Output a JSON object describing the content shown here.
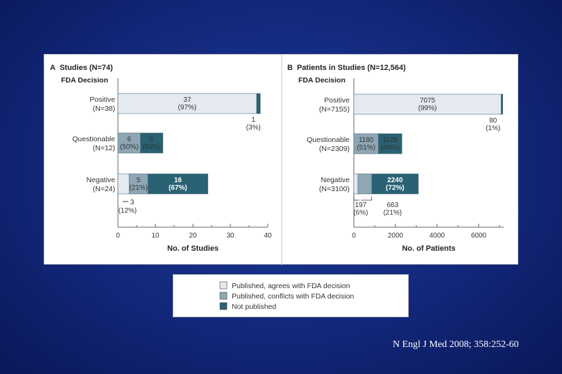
{
  "colors": {
    "agrees": "#e4eaf0",
    "conflicts": "#8fa6b5",
    "not_published": "#2a6274",
    "axis": "#666666",
    "label": "#333333"
  },
  "legend": {
    "items": [
      {
        "label": "Published, agrees with FDA decision",
        "color": "#e4eaf0"
      },
      {
        "label": "Published, conflicts with FDA decision",
        "color": "#8fa6b5"
      },
      {
        "label": "Not published",
        "color": "#2a6274"
      }
    ]
  },
  "citation": "N Engl J Med 2008; 358:252-60",
  "chart_data": [
    {
      "type": "bar",
      "stacked": true,
      "orientation": "horizontal",
      "panel_letter": "A",
      "title": "Studies (N=74)",
      "subtitle": "FDA Decision",
      "xlabel": "No. of Studies",
      "xlim": [
        0,
        40
      ],
      "xticks": [
        0,
        10,
        20,
        30,
        40
      ],
      "categories": [
        {
          "name": "Positive",
          "n": "(N=38)"
        },
        {
          "name": "Questionable",
          "n": "(N=12)"
        },
        {
          "name": "Negative",
          "n": "(N=24)"
        }
      ],
      "series": [
        {
          "name": "Published, agrees with FDA decision",
          "values": [
            37,
            0,
            3
          ]
        },
        {
          "name": "Published, conflicts with FDA decision",
          "values": [
            0,
            6,
            5
          ]
        },
        {
          "name": "Not published",
          "values": [
            1,
            6,
            16
          ]
        }
      ],
      "data_labels": {
        "positive_agrees": {
          "value": "37",
          "pct": "(97%)"
        },
        "positive_not_published": {
          "value": "1",
          "pct": "(3%)"
        },
        "questionable_conflicts": {
          "value": "6",
          "pct": "(50%)"
        },
        "questionable_not_published": {
          "value": "6",
          "pct": "(50%)"
        },
        "negative_agrees": {
          "value": "3",
          "pct": "(12%)"
        },
        "negative_conflicts": {
          "value": "5",
          "pct": "(21%)"
        },
        "negative_not_published": {
          "value": "16",
          "pct": "(67%)"
        }
      }
    },
    {
      "type": "bar",
      "stacked": true,
      "orientation": "horizontal",
      "panel_letter": "B",
      "title": "Patients in Studies (N=12,564)",
      "subtitle": "FDA Decision",
      "xlabel": "No. of Patients",
      "xlim": [
        0,
        7200
      ],
      "xticks": [
        0,
        2000,
        4000,
        6000
      ],
      "categories": [
        {
          "name": "Positive",
          "n": "(N=7155)"
        },
        {
          "name": "Questionable",
          "n": "(N=2309)"
        },
        {
          "name": "Negative",
          "n": "(N=3100)"
        }
      ],
      "series": [
        {
          "name": "Published, agrees with FDA decision",
          "values": [
            7075,
            0,
            197
          ]
        },
        {
          "name": "Published, conflicts with FDA decision",
          "values": [
            0,
            1180,
            663
          ]
        },
        {
          "name": "Not published",
          "values": [
            80,
            1129,
            2240
          ]
        }
      ],
      "data_labels": {
        "positive_agrees": {
          "value": "7075",
          "pct": "(99%)"
        },
        "positive_not_published": {
          "value": "80",
          "pct": "(1%)"
        },
        "questionable_conflicts": {
          "value": "1180",
          "pct": "(51%)"
        },
        "questionable_not_published": {
          "value": "1129",
          "pct": "(49%)"
        },
        "negative_agrees": {
          "value": "197",
          "pct": "(6%)"
        },
        "negative_conflicts": {
          "value": "663",
          "pct": "(21%)"
        },
        "negative_not_published": {
          "value": "2240",
          "pct": "(72%)"
        }
      }
    }
  ]
}
